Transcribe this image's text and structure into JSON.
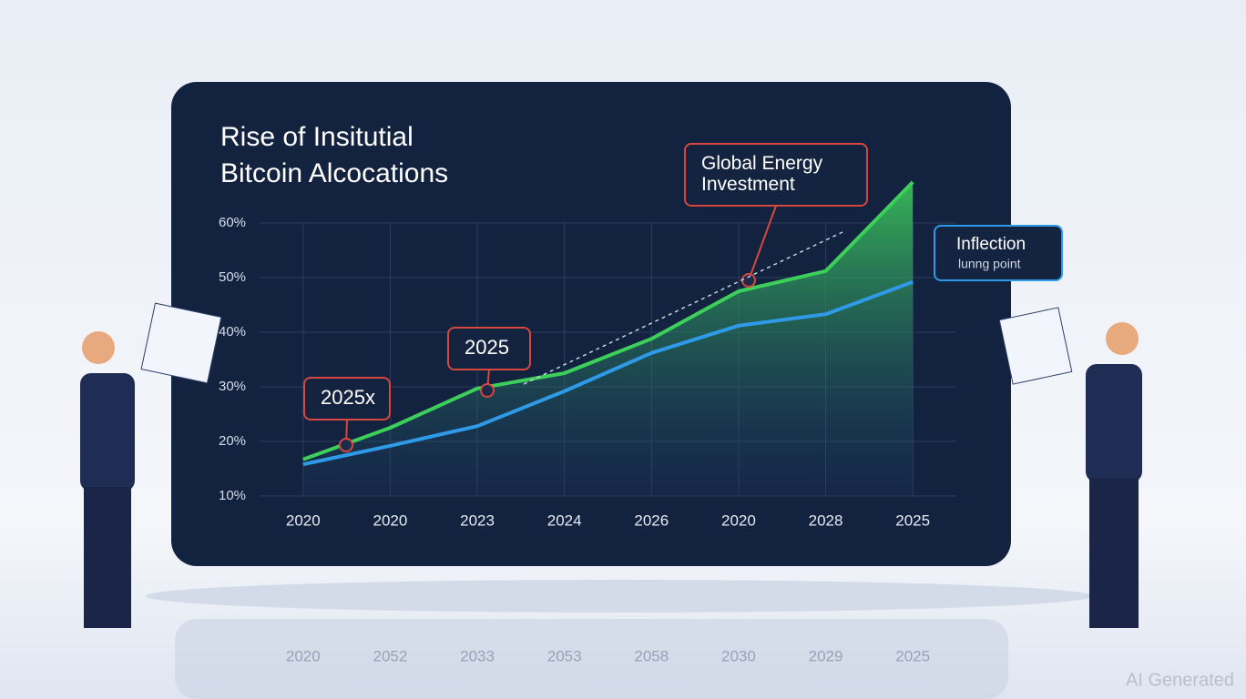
{
  "chart_data": {
    "type": "line",
    "title": [
      "Rise of Insitutial",
      "Bitcoin Alcocations"
    ],
    "categories": [
      "2020",
      "2020",
      "2023",
      "2024",
      "2026",
      "2020",
      "2028",
      "2025"
    ],
    "series": [
      {
        "name": "Green",
        "color": "#3ccf5a",
        "values": [
          16.7,
          22.5,
          29.7,
          32.5,
          38.8,
          47.5,
          51.2,
          67.5
        ]
      },
      {
        "name": "Blue",
        "color": "#2f9be8",
        "values": [
          15.8,
          19.2,
          22.8,
          29.2,
          36.2,
          41.2,
          43.3,
          49.2
        ]
      }
    ],
    "ylim": [
      10,
      70
    ],
    "yticks": [
      {
        "value": 60,
        "label": "60%"
      },
      {
        "value": 50,
        "label": "50%"
      },
      {
        "value": 40,
        "label": "40%"
      },
      {
        "value": 30,
        "label": "30%"
      },
      {
        "value": 20,
        "label": "20%"
      },
      {
        "value": 10,
        "label": "10%"
      }
    ],
    "grid": true,
    "annotations": [
      "2025x",
      "2025",
      "Global Energy",
      "Investment",
      "Inflection",
      "lunng point"
    ],
    "reflection_labels": [
      "2020",
      "2052",
      "2033",
      "2053",
      "2058",
      "2030",
      "2029",
      "2025"
    ],
    "watermark": "AI Generated"
  }
}
